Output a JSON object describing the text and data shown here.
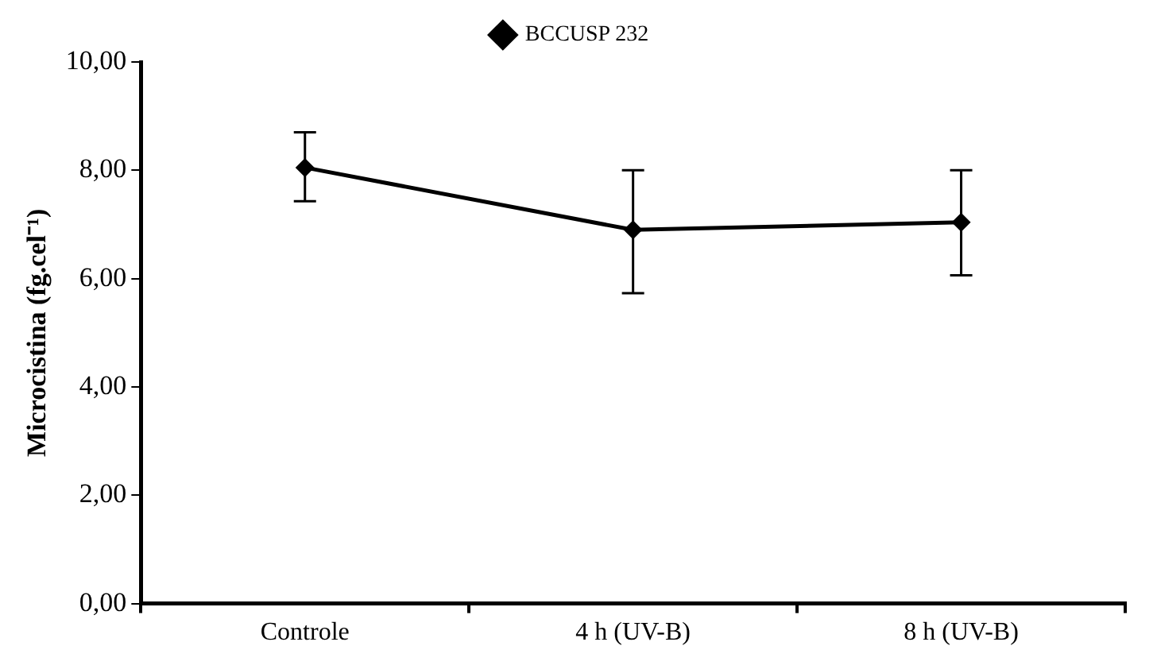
{
  "chart_data": {
    "type": "line",
    "ylabel": "Microcistina (fg.cel⁻¹)",
    "categories": [
      "Controle",
      "4 h (UV-B)",
      "8 h (UV-B)"
    ],
    "series": [
      {
        "name": "BCCUSP 232",
        "color": "#000000",
        "values": [
          8.05,
          6.9,
          7.04
        ],
        "errors": [
          [
            7.43,
            8.7
          ],
          [
            5.73,
            8.0
          ],
          [
            6.06,
            8.0
          ]
        ]
      }
    ],
    "ylim": [
      0,
      10
    ],
    "yticks": [
      {
        "value": 0,
        "label": "0,00"
      },
      {
        "value": 2,
        "label": "2,00"
      },
      {
        "value": 4,
        "label": "4,00"
      },
      {
        "value": 6,
        "label": "6,00"
      },
      {
        "value": 8,
        "label": "8,00"
      },
      {
        "value": 10,
        "label": "10,00"
      }
    ],
    "grid": false,
    "legend": "top",
    "marker": "diamond",
    "line_style": "solid"
  }
}
